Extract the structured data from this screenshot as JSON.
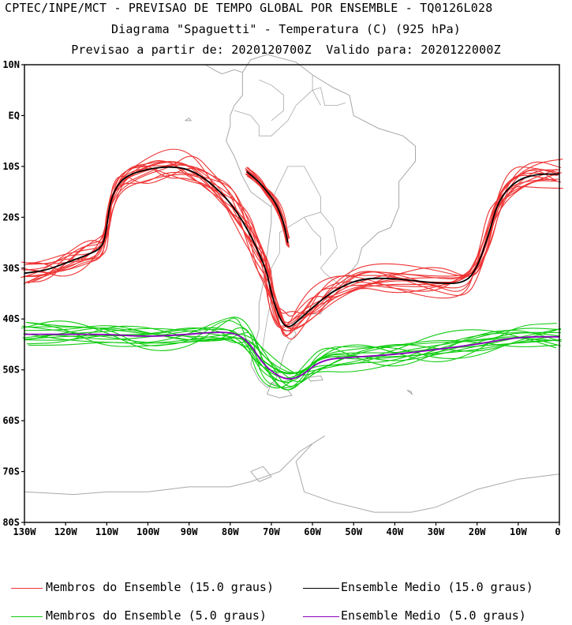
{
  "header": {
    "line1": "CPTEC/INPE/MCT - PREVISAO DE TEMPO GLOBAL POR ENSEMBLE - TQ0126L028",
    "line2": "Diagrama \"Spaguetti\" - Temperatura (C) (925 hPa)",
    "line3": "Previsao a partir de: 2020120700Z  Valido para: 2020122000Z"
  },
  "axes": {
    "lat_labels": [
      "10N",
      "EQ",
      "10S",
      "20S",
      "30S",
      "40S",
      "50S",
      "60S",
      "70S",
      "80S"
    ],
    "lon_labels": [
      "130W",
      "120W",
      "110W",
      "100W",
      "90W",
      "80W",
      "70W",
      "60W",
      "50W",
      "40W",
      "30W",
      "20W",
      "10W",
      "0"
    ]
  },
  "colors": {
    "members_15": "#ee3333",
    "mean_15": "#000000",
    "members_5": "#11cc11",
    "mean_5": "#8800bb",
    "coast": "#a8a8a8"
  },
  "legend": {
    "members_15": "Membros do Ensemble (15.0 graus)",
    "mean_15": "Ensemble Medio (15.0 graus)",
    "members_5": "Membros do Ensemble (5.0 graus)",
    "mean_5": "Ensemble Medio (5.0 graus)"
  },
  "chart_data": {
    "type": "map",
    "projection": "cylindrical lon-lat",
    "lon_range": [
      -130,
      0
    ],
    "lat_range": [
      -80,
      10
    ],
    "mean_15": [
      [
        -130,
        -31
      ],
      [
        -125,
        -30.5
      ],
      [
        -120,
        -29
      ],
      [
        -115,
        -27.5
      ],
      [
        -111,
        -26
      ],
      [
        -110,
        -22
      ],
      [
        -109,
        -16
      ],
      [
        -106,
        -12
      ],
      [
        -100,
        -10.5
      ],
      [
        -95,
        -10
      ],
      [
        -90,
        -10.5
      ],
      [
        -85,
        -13
      ],
      [
        -80,
        -17
      ],
      [
        -76,
        -22
      ],
      [
        -73,
        -27
      ],
      [
        -71,
        -31
      ],
      [
        -70,
        -35
      ],
      [
        -68,
        -40
      ],
      [
        -66,
        -42
      ],
      [
        -63,
        -40
      ],
      [
        -59,
        -37
      ],
      [
        -54,
        -34
      ],
      [
        -48,
        -32
      ],
      [
        -40,
        -32
      ],
      [
        -30,
        -33
      ],
      [
        -23,
        -33
      ],
      [
        -20,
        -30
      ],
      [
        -17,
        -23
      ],
      [
        -15,
        -17
      ],
      [
        -11,
        -13
      ],
      [
        -6,
        -11.5
      ],
      [
        0,
        -11.5
      ]
    ],
    "mean_15_island": [
      [
        -76,
        -11
      ],
      [
        -73,
        -13
      ],
      [
        -71,
        -15
      ],
      [
        -69,
        -17
      ],
      [
        -67,
        -21
      ],
      [
        -66,
        -25
      ]
    ],
    "mean_5": [
      [
        -130,
        -43
      ],
      [
        -120,
        -43
      ],
      [
        -110,
        -43
      ],
      [
        -100,
        -43.5
      ],
      [
        -90,
        -43
      ],
      [
        -82,
        -42.5
      ],
      [
        -78,
        -43
      ],
      [
        -75,
        -45
      ],
      [
        -72,
        -49
      ],
      [
        -67,
        -52
      ],
      [
        -63,
        -51.5
      ],
      [
        -58,
        -48
      ],
      [
        -50,
        -47.5
      ],
      [
        -40,
        -47
      ],
      [
        -30,
        -46
      ],
      [
        -20,
        -45
      ],
      [
        -10,
        -43.5
      ],
      [
        0,
        -43.5
      ]
    ]
  }
}
